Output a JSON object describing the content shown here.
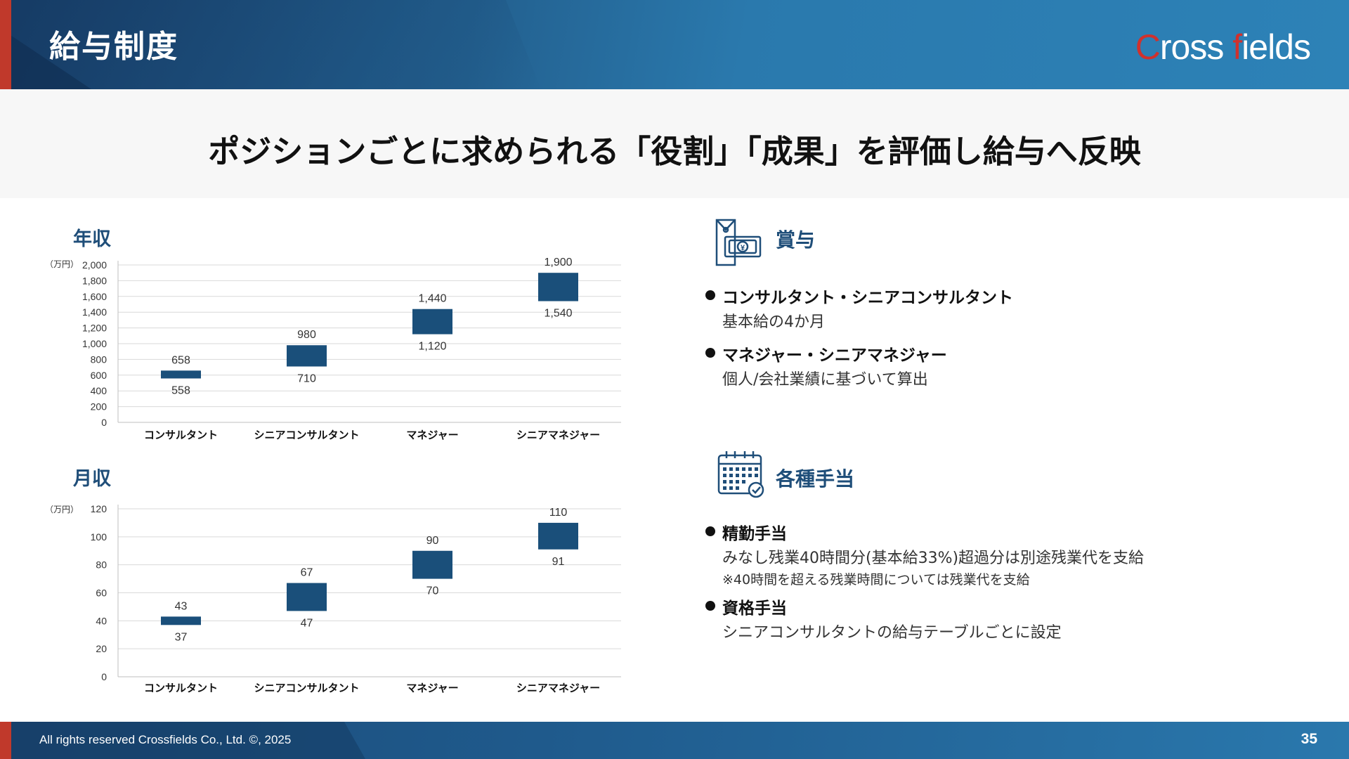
{
  "header": {
    "title": "給与制度",
    "logo_part1": "C",
    "logo_part2": "ross",
    "logo_part3": "f",
    "logo_part4": "ields"
  },
  "subtitle": "ポジションごとに求められる「役割」「成果」を評価し給与へ反映",
  "chart_data": [
    {
      "type": "bar",
      "title": "年収",
      "unit_label": "（万円）",
      "categories": [
        "コンサルタント",
        "シニアコンサルタント",
        "マネジャー",
        "シニアマネジャー"
      ],
      "low": [
        558,
        710,
        1120,
        1540
      ],
      "high": [
        658,
        980,
        1440,
        1900
      ],
      "low_labels": [
        "558",
        "710",
        "1,120",
        "1,540"
      ],
      "high_labels": [
        "658",
        "980",
        "1,440",
        "1,900"
      ],
      "ylim": [
        0,
        2000
      ],
      "yticks": [
        "0",
        "200",
        "400",
        "600",
        "800",
        "1,000",
        "1,200",
        "1,400",
        "1,600",
        "1,800",
        "2,000"
      ],
      "ytick_values": [
        0,
        200,
        400,
        600,
        800,
        1000,
        1200,
        1400,
        1600,
        1800,
        2000
      ],
      "grid": true,
      "color": "#1a4f7a"
    },
    {
      "type": "bar",
      "title": "月収",
      "unit_label": "（万円）",
      "categories": [
        "コンサルタント",
        "シニアコンサルタント",
        "マネジャー",
        "シニアマネジャー"
      ],
      "low": [
        37,
        47,
        70,
        91
      ],
      "high": [
        43,
        67,
        90,
        110
      ],
      "low_labels": [
        "37",
        "47",
        "70",
        "91"
      ],
      "high_labels": [
        "43",
        "67",
        "90",
        "110"
      ],
      "ylim": [
        0,
        120
      ],
      "yticks": [
        "0",
        "20",
        "40",
        "60",
        "80",
        "100",
        "120"
      ],
      "ytick_values": [
        0,
        20,
        40,
        60,
        80,
        100,
        120
      ],
      "grid": true,
      "color": "#1a4f7a"
    }
  ],
  "bonus": {
    "heading": "賞与",
    "items": [
      {
        "title": "コンサルタント・シニアコンサルタント",
        "line": "基本給の4か月"
      },
      {
        "title": "マネジャー・シニアマネジャー",
        "line": "個人/会社業績に基づいて算出"
      }
    ]
  },
  "allowances": {
    "heading": "各種手当",
    "items": [
      {
        "title": "精勤手当",
        "line": "みなし残業40時間分(基本給33%)超過分は別途残業代を支給",
        "note": "※40時間を超える残業時間については残業代を支給"
      },
      {
        "title": "資格手当",
        "line": "シニアコンサルタントの給与テーブルごとに設定"
      }
    ]
  },
  "footer": {
    "copyright": "All rights reserved Crossfields Co., Ltd. ©, 2025",
    "page_number": "35"
  },
  "colors": {
    "accent": "#1f4e79",
    "bar": "#1a4f7a",
    "red": "#c0392b"
  }
}
